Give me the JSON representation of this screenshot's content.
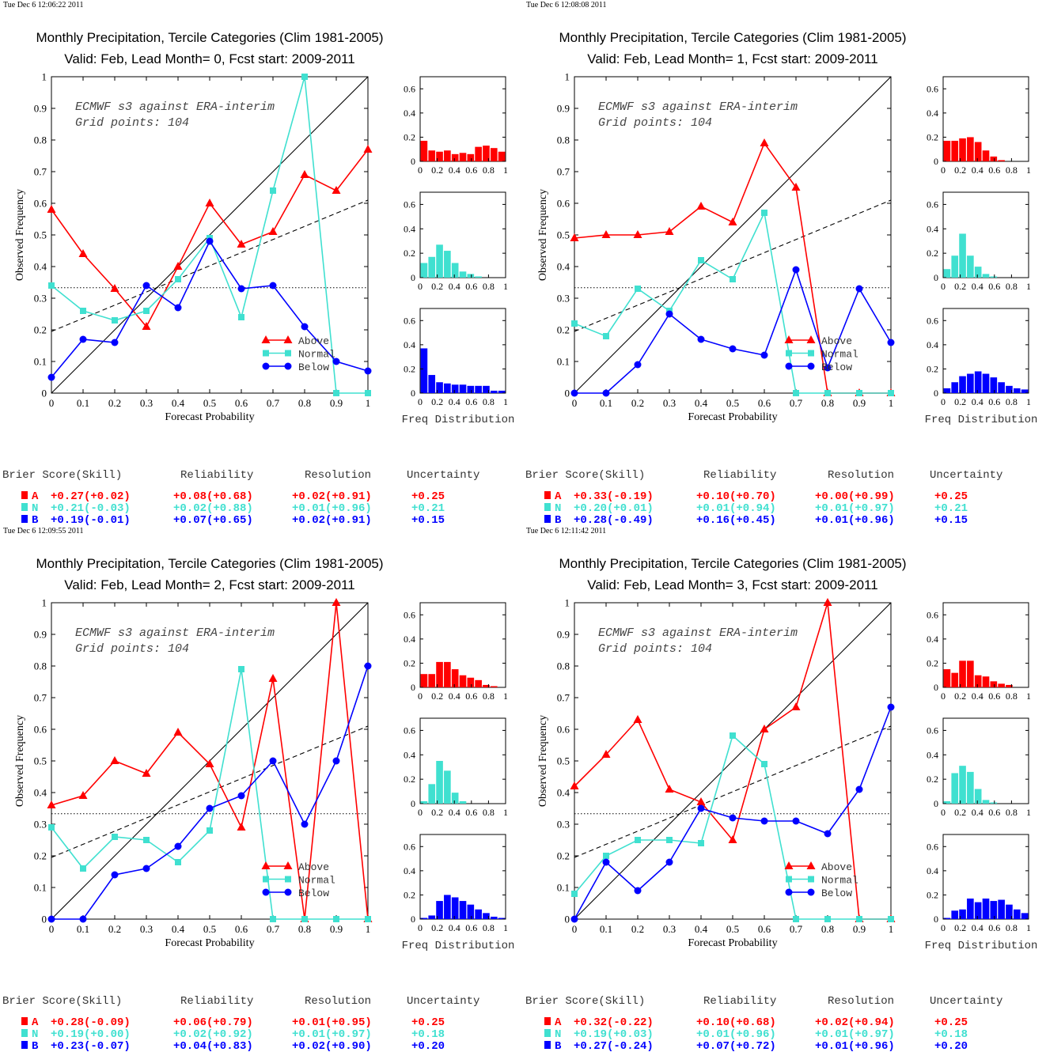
{
  "meta": {
    "colors": {
      "above": "#ff0000",
      "normal": "#40e0d0",
      "below": "#0000ff",
      "axis": "#000000"
    },
    "score_headers": [
      "Brier Score(Skill)",
      "Reliability",
      "Resolution",
      "Uncertainty"
    ],
    "xlabel": "Forecast Probability",
    "ylabel": "Observed Frequency",
    "annotation_line1": "ECMWF s3 against ERA-interim",
    "annotation_line2": "Grid points:  104",
    "hist_label": "Freq Distribution",
    "legend": [
      "Above",
      "Normal",
      "Below"
    ],
    "x_ticks": [
      "0",
      "0.1",
      "0.2",
      "0.3",
      "0.4",
      "0.5",
      "0.6",
      "0.7",
      "0.8",
      "0.9",
      "1"
    ],
    "y_ticks": [
      "0",
      "0.1",
      "0.2",
      "0.3",
      "0.4",
      "0.5",
      "0.6",
      "0.7",
      "0.8",
      "0.9",
      "1"
    ],
    "hist_y_ticks": [
      "0",
      "0.2",
      "0.4",
      "0.6"
    ],
    "hist_x_ticks": [
      "0",
      "0.2",
      "0.4",
      "0.6",
      "0.8",
      "1"
    ]
  },
  "chart_data": [
    {
      "type": "line",
      "timestamp": "Tue Dec  6 12:06:22 2011",
      "title": "Monthly Precipitation, Tercile Categories (Clim 1981-2005)",
      "subtitle": "Valid: Feb, Lead Month= 0, Fcst start: 2009-2011",
      "xlim": [
        0,
        1
      ],
      "ylim": [
        0,
        1
      ],
      "x": [
        0,
        0.1,
        0.2,
        0.3,
        0.4,
        0.5,
        0.6,
        0.7,
        0.8,
        0.9,
        1
      ],
      "series": [
        {
          "name": "Above",
          "values": [
            0.58,
            0.44,
            0.33,
            0.21,
            0.4,
            0.6,
            0.47,
            0.51,
            0.69,
            0.64,
            0.77
          ]
        },
        {
          "name": "Normal",
          "values": [
            0.34,
            0.26,
            0.23,
            0.26,
            0.36,
            0.49,
            0.24,
            0.64,
            1.0,
            0.0,
            0.0
          ]
        },
        {
          "name": "Below",
          "values": [
            0.05,
            0.17,
            0.16,
            0.34,
            0.27,
            0.48,
            0.33,
            0.34,
            0.21,
            0.1,
            0.07
          ]
        }
      ],
      "climatology": 0.333,
      "skill_line": [
        [
          0,
          0.195
        ],
        [
          1,
          0.61
        ]
      ],
      "histograms": {
        "ylim": [
          0,
          0.7
        ],
        "above": [
          0.17,
          0.09,
          0.08,
          0.09,
          0.06,
          0.07,
          0.06,
          0.12,
          0.13,
          0.11,
          0.08
        ],
        "normal": [
          0.12,
          0.17,
          0.27,
          0.22,
          0.12,
          0.05,
          0.03,
          0.01,
          0.0,
          0.0,
          0.0
        ],
        "below": [
          0.37,
          0.15,
          0.09,
          0.08,
          0.07,
          0.07,
          0.06,
          0.06,
          0.06,
          0.02,
          0.02
        ]
      },
      "scores": {
        "above": [
          "A",
          "+0.27(+0.02)",
          "+0.08(+0.68)",
          "+0.02(+0.91)",
          "+0.25"
        ],
        "normal": [
          "N",
          "+0.21(-0.03)",
          "+0.02(+0.88)",
          "+0.01(+0.96)",
          "+0.21"
        ],
        "below": [
          "B",
          "+0.19(-0.01)",
          "+0.07(+0.65)",
          "+0.02(+0.91)",
          "+0.15"
        ]
      }
    },
    {
      "type": "line",
      "timestamp": "Tue Dec  6 12:08:08 2011",
      "title": "Monthly Precipitation, Tercile Categories (Clim 1981-2005)",
      "subtitle": "Valid: Feb, Lead Month= 1, Fcst start: 2009-2011",
      "xlim": [
        0,
        1
      ],
      "ylim": [
        0,
        1
      ],
      "x": [
        0,
        0.1,
        0.2,
        0.3,
        0.4,
        0.5,
        0.6,
        0.7,
        0.8,
        0.9,
        1
      ],
      "series": [
        {
          "name": "Above",
          "values": [
            0.49,
            0.5,
            0.5,
            0.51,
            0.59,
            0.54,
            0.79,
            0.65,
            0.0,
            0.0,
            0.0
          ]
        },
        {
          "name": "Normal",
          "values": [
            0.22,
            0.18,
            0.33,
            0.26,
            0.42,
            0.36,
            0.57,
            0.0,
            0.0,
            0.0,
            0.0
          ]
        },
        {
          "name": "Below",
          "values": [
            0.0,
            0.0,
            0.09,
            0.25,
            0.17,
            0.14,
            0.12,
            0.39,
            0.08,
            0.33,
            0.16
          ]
        }
      ],
      "climatology": 0.333,
      "skill_line": [
        [
          0,
          0.195
        ],
        [
          1,
          0.61
        ]
      ],
      "histograms": {
        "ylim": [
          0,
          0.7
        ],
        "above": [
          0.17,
          0.17,
          0.19,
          0.2,
          0.16,
          0.09,
          0.04,
          0.01,
          0.0,
          0.0,
          0.0
        ],
        "normal": [
          0.07,
          0.18,
          0.36,
          0.18,
          0.09,
          0.03,
          0.01,
          0.0,
          0.0,
          0.0,
          0.0
        ],
        "below": [
          0.04,
          0.09,
          0.14,
          0.16,
          0.18,
          0.16,
          0.13,
          0.09,
          0.06,
          0.04,
          0.03
        ]
      },
      "scores": {
        "above": [
          "A",
          "+0.33(-0.19)",
          "+0.10(+0.70)",
          "+0.00(+0.99)",
          "+0.25"
        ],
        "normal": [
          "N",
          "+0.20(+0.01)",
          "+0.01(+0.94)",
          "+0.01(+0.97)",
          "+0.21"
        ],
        "below": [
          "B",
          "+0.28(-0.49)",
          "+0.16(+0.45)",
          "+0.01(+0.96)",
          "+0.15"
        ]
      }
    },
    {
      "type": "line",
      "timestamp": "Tue Dec  6 12:09:55 2011",
      "title": "Monthly Precipitation, Tercile Categories (Clim 1981-2005)",
      "subtitle": "Valid: Feb, Lead Month= 2, Fcst start: 2009-2011",
      "xlim": [
        0,
        1
      ],
      "ylim": [
        0,
        1
      ],
      "x": [
        0,
        0.1,
        0.2,
        0.3,
        0.4,
        0.5,
        0.6,
        0.7,
        0.8,
        0.9,
        1
      ],
      "series": [
        {
          "name": "Above",
          "values": [
            0.36,
            0.39,
            0.5,
            0.46,
            0.59,
            0.49,
            0.29,
            0.76,
            0.0,
            1.0,
            0.0
          ]
        },
        {
          "name": "Normal",
          "values": [
            0.29,
            0.16,
            0.26,
            0.25,
            0.18,
            0.28,
            0.79,
            0.0,
            0.0,
            0.0,
            0.0
          ]
        },
        {
          "name": "Below",
          "values": [
            0.0,
            0.0,
            0.14,
            0.16,
            0.23,
            0.35,
            0.39,
            0.5,
            0.3,
            0.5,
            0.8
          ]
        }
      ],
      "climatology": 0.333,
      "skill_line": [
        [
          0,
          0.195
        ],
        [
          1,
          0.61
        ]
      ],
      "histograms": {
        "ylim": [
          0,
          0.7
        ],
        "above": [
          0.11,
          0.11,
          0.21,
          0.21,
          0.15,
          0.1,
          0.08,
          0.06,
          0.02,
          0.01,
          0.0
        ],
        "normal": [
          0.02,
          0.16,
          0.35,
          0.27,
          0.09,
          0.02,
          0.0,
          0.0,
          0.0,
          0.0,
          0.0
        ],
        "below": [
          0.01,
          0.03,
          0.15,
          0.2,
          0.18,
          0.15,
          0.12,
          0.08,
          0.05,
          0.02,
          0.01
        ]
      },
      "scores": {
        "above": [
          "A",
          "+0.28(-0.09)",
          "+0.06(+0.79)",
          "+0.01(+0.95)",
          "+0.25"
        ],
        "normal": [
          "N",
          "+0.19(+0.00)",
          "+0.02(+0.92)",
          "+0.01(+0.97)",
          "+0.18"
        ],
        "below": [
          "B",
          "+0.23(-0.07)",
          "+0.04(+0.83)",
          "+0.02(+0.90)",
          "+0.20"
        ]
      }
    },
    {
      "type": "line",
      "timestamp": "Tue Dec  6 12:11:42 2011",
      "title": "Monthly Precipitation, Tercile Categories (Clim 1981-2005)",
      "subtitle": "Valid: Feb, Lead Month= 3, Fcst start: 2009-2011",
      "xlim": [
        0,
        1
      ],
      "ylim": [
        0,
        1
      ],
      "x": [
        0,
        0.1,
        0.2,
        0.3,
        0.4,
        0.5,
        0.6,
        0.7,
        0.8,
        0.9,
        1
      ],
      "series": [
        {
          "name": "Above",
          "values": [
            0.42,
            0.52,
            0.63,
            0.41,
            0.37,
            0.25,
            0.6,
            0.67,
            1.0,
            0.0,
            0.0
          ]
        },
        {
          "name": "Normal",
          "values": [
            0.08,
            0.2,
            0.25,
            0.25,
            0.24,
            0.58,
            0.49,
            0.0,
            0.0,
            0.0,
            0.0
          ]
        },
        {
          "name": "Below",
          "values": [
            0.0,
            0.18,
            0.09,
            0.18,
            0.35,
            0.32,
            0.31,
            0.31,
            0.27,
            0.41,
            0.67
          ]
        }
      ],
      "climatology": 0.333,
      "skill_line": [
        [
          0,
          0.195
        ],
        [
          1,
          0.61
        ]
      ],
      "histograms": {
        "ylim": [
          0,
          0.7
        ],
        "above": [
          0.15,
          0.12,
          0.22,
          0.22,
          0.1,
          0.09,
          0.05,
          0.03,
          0.02,
          0.0,
          0.0
        ],
        "normal": [
          0.02,
          0.25,
          0.31,
          0.26,
          0.12,
          0.03,
          0.01,
          0.0,
          0.0,
          0.0,
          0.0
        ],
        "below": [
          0.01,
          0.07,
          0.08,
          0.17,
          0.14,
          0.17,
          0.15,
          0.16,
          0.12,
          0.08,
          0.05
        ]
      },
      "scores": {
        "above": [
          "A",
          "+0.32(-0.22)",
          "+0.10(+0.68)",
          "+0.02(+0.94)",
          "+0.25"
        ],
        "normal": [
          "N",
          "+0.19(+0.03)",
          "+0.01(+0.96)",
          "+0.01(+0.97)",
          "+0.18"
        ],
        "below": [
          "B",
          "+0.27(-0.24)",
          "+0.07(+0.72)",
          "+0.01(+0.96)",
          "+0.20"
        ]
      }
    }
  ]
}
